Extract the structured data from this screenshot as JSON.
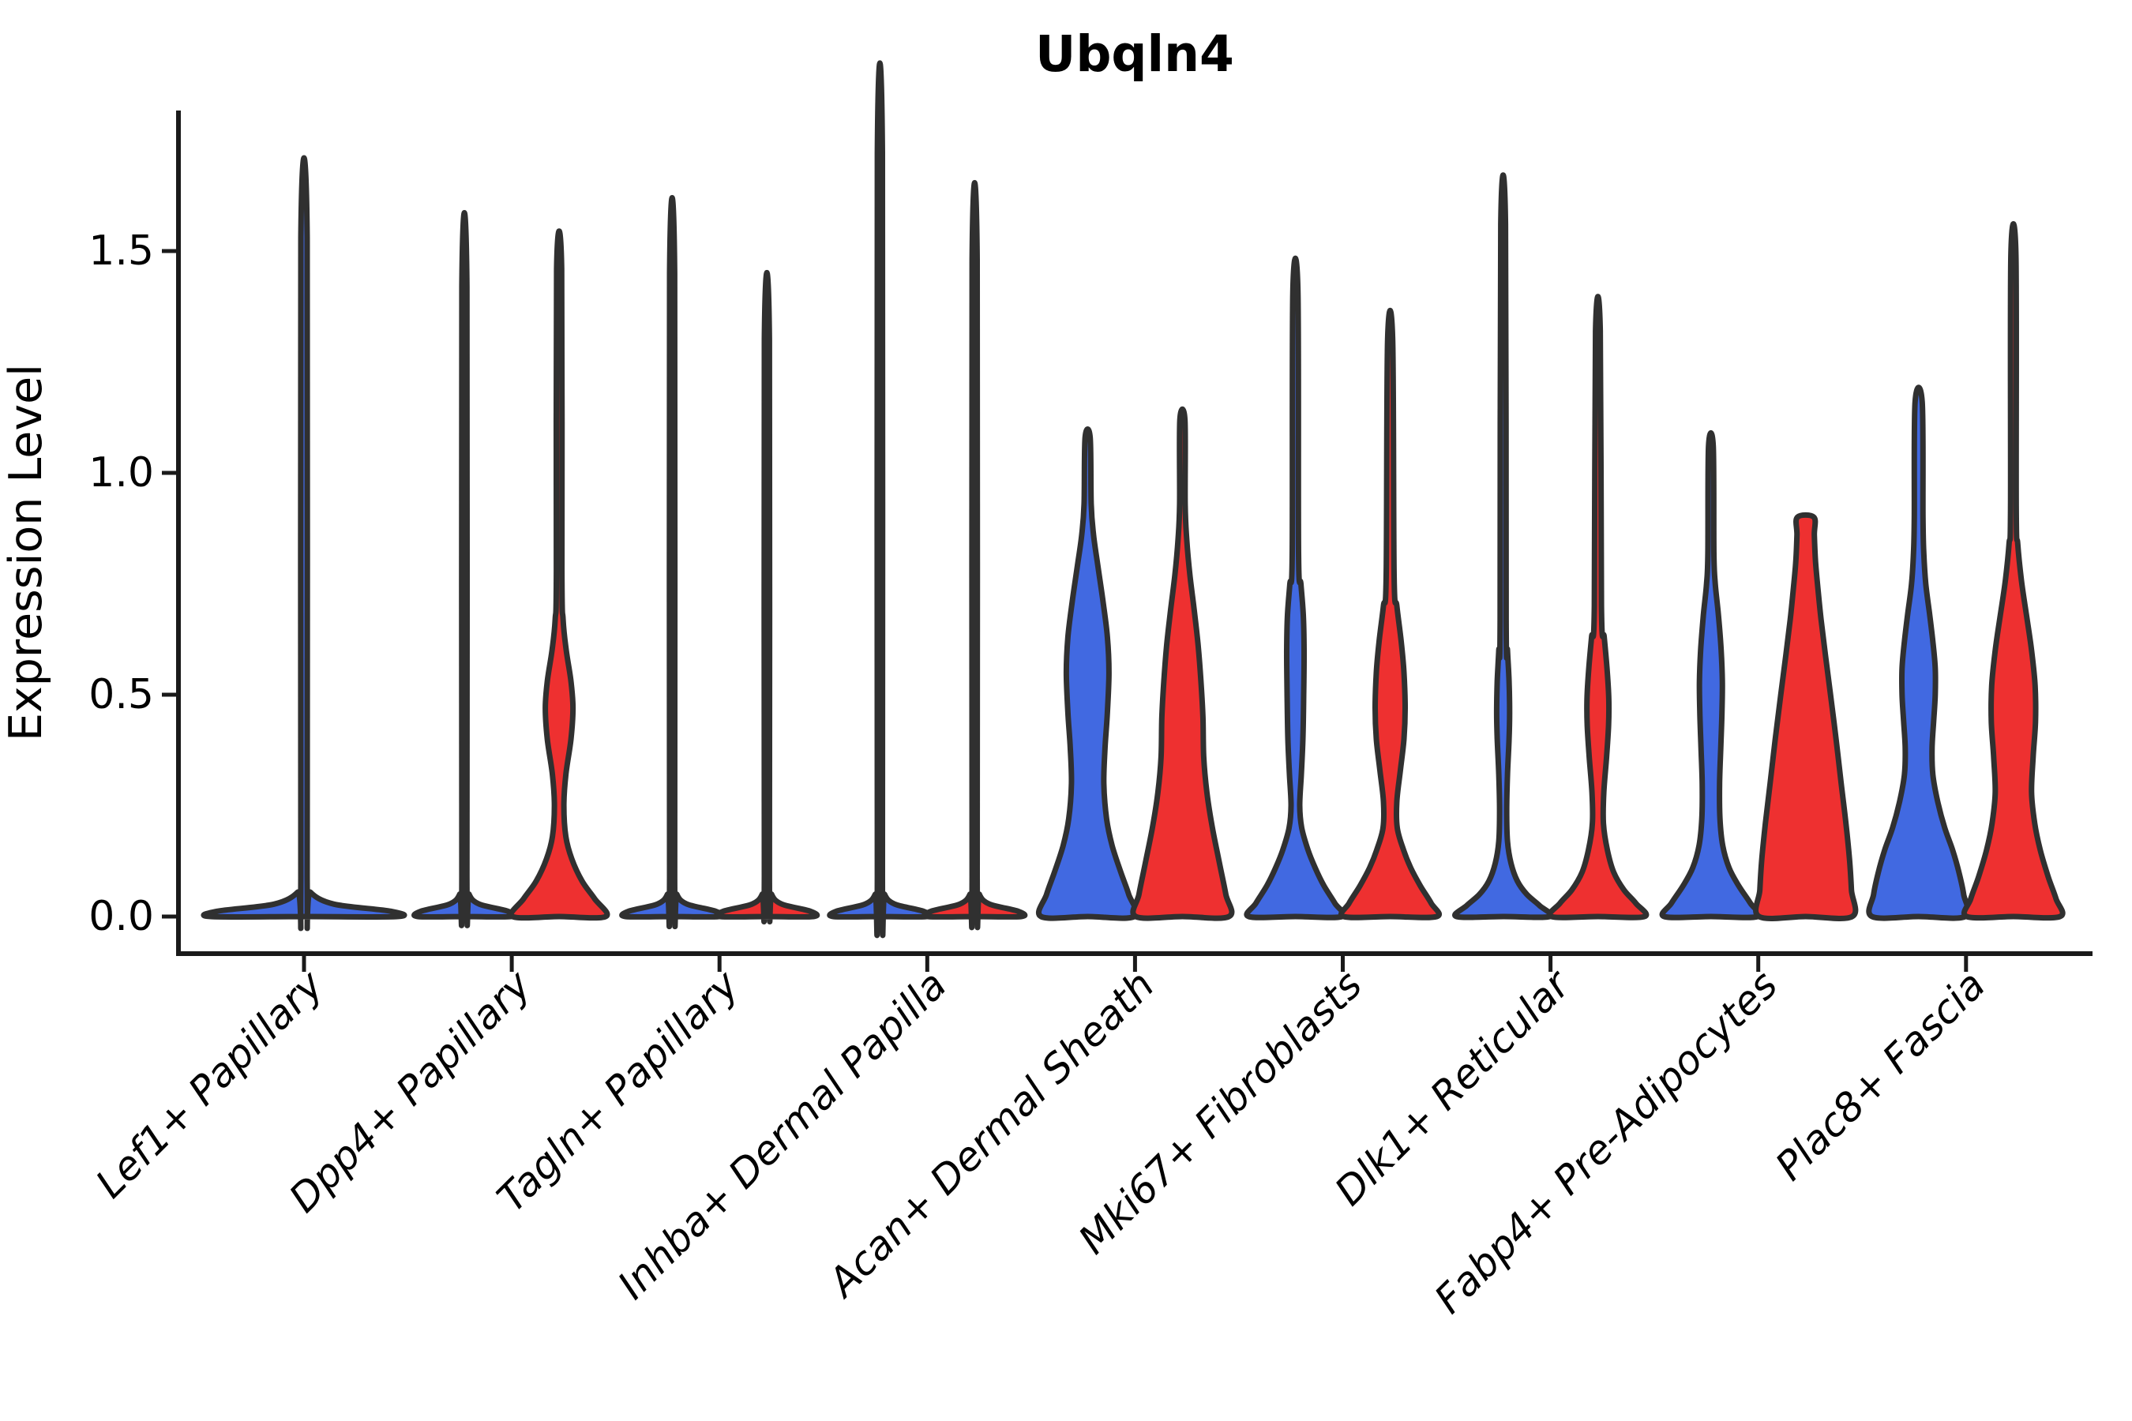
{
  "chart_data": {
    "type": "violin",
    "title": "Ubqln4",
    "ylabel": "Expression Level",
    "xlabel": "",
    "grid": false,
    "legend": "none",
    "yticks": [
      "0.0",
      "0.5",
      "1.0",
      "1.5"
    ],
    "ytick_values": [
      0.0,
      0.5,
      1.0,
      1.5
    ],
    "ylim": [
      0,
      1.82
    ],
    "colors": {
      "blue": "#4169E1",
      "red": "#EE3030",
      "outline": "#303030",
      "axis": "#1a1a1a",
      "text": "#000000"
    },
    "categories": [
      "Lef1+ Papillary",
      "Dpp4+ Papillary",
      "Tagln+ Papillary",
      "Inhba+ Dermal Papilla",
      "Acan+ Dermal Sheath",
      "Mki67+ Fibroblasts",
      "Dlk1+ Reticular",
      "Fabp4+ Pre-Adipocytes",
      "Plac8+ Fascia"
    ],
    "series_note": "two unlabeled conditions per cluster: blue (left violin) and red (right violin); no legend shown",
    "violins": [
      {
        "category": "Lef1+ Papillary",
        "items": [
          {
            "side": "center",
            "color": "blue",
            "top": 1.53,
            "shape": "flat-with-spike",
            "profile": [
              [
                0,
                118
              ],
              [
                0.012,
                110
              ],
              [
                0.028,
                38
              ],
              [
                0.055,
                8
              ],
              [
                0.09,
                4
              ],
              [
                1.53,
                4
              ]
            ]
          }
        ]
      },
      {
        "category": "Dpp4+ Papillary",
        "items": [
          {
            "side": "left",
            "color": "blue",
            "top": 1.42,
            "shape": "flat-with-spike",
            "profile": [
              [
                0,
                59
              ],
              [
                0.012,
                55
              ],
              [
                0.028,
                19
              ],
              [
                0.05,
                6
              ],
              [
                0.09,
                3.2
              ],
              [
                1.42,
                3.2
              ]
            ]
          },
          {
            "side": "right",
            "color": "red",
            "top": 1.46,
            "shape": "body-with-spike",
            "profile": [
              [
                0,
                59
              ],
              [
                0.04,
                45
              ],
              [
                0.08,
                29
              ],
              [
                0.13,
                16
              ],
              [
                0.18,
                8.5
              ],
              [
                0.25,
                6
              ],
              [
                0.32,
                8.5
              ],
              [
                0.4,
                15
              ],
              [
                0.47,
                17.5
              ],
              [
                0.53,
                15
              ],
              [
                0.6,
                9
              ],
              [
                0.67,
                5
              ],
              [
                0.78,
                3.5
              ],
              [
                1.46,
                3.2
              ]
            ]
          }
        ]
      },
      {
        "category": "Tagln+ Papillary",
        "items": [
          {
            "side": "left",
            "color": "blue",
            "top": 1.45,
            "shape": "flat-with-spike",
            "profile": [
              [
                0,
                59
              ],
              [
                0.012,
                55
              ],
              [
                0.028,
                19
              ],
              [
                0.05,
                6
              ],
              [
                0.09,
                3.2
              ],
              [
                1.45,
                3.2
              ]
            ]
          },
          {
            "side": "right",
            "color": "red",
            "top": 1.3,
            "shape": "flat-with-spike",
            "profile": [
              [
                0,
                59
              ],
              [
                0.012,
                55
              ],
              [
                0.028,
                19
              ],
              [
                0.05,
                6
              ],
              [
                0.09,
                3.2
              ],
              [
                1.3,
                3.2
              ]
            ]
          }
        ]
      },
      {
        "category": "Inhba+ Dermal Papilla",
        "items": [
          {
            "side": "left",
            "color": "blue",
            "top": 1.72,
            "shape": "flat-with-spike",
            "profile": [
              [
                0,
                59
              ],
              [
                0.012,
                55
              ],
              [
                0.028,
                19
              ],
              [
                0.05,
                6
              ],
              [
                0.09,
                3.2
              ],
              [
                1.72,
                3.2
              ]
            ]
          },
          {
            "side": "right",
            "color": "red",
            "top": 1.48,
            "shape": "flat-with-spike",
            "profile": [
              [
                0,
                59
              ],
              [
                0.012,
                55
              ],
              [
                0.028,
                19
              ],
              [
                0.05,
                6
              ],
              [
                0.09,
                3.2
              ],
              [
                1.48,
                3.2
              ]
            ]
          }
        ]
      },
      {
        "category": "Acan+ Dermal Sheath",
        "items": [
          {
            "side": "left",
            "color": "blue",
            "top": 1.08,
            "shape": "body-with-spike",
            "profile": [
              [
                0,
                59
              ],
              [
                0.05,
                52
              ],
              [
                0.1,
                42
              ],
              [
                0.16,
                31
              ],
              [
                0.22,
                24
              ],
              [
                0.3,
                20.5
              ],
              [
                0.38,
                22
              ],
              [
                0.46,
                25
              ],
              [
                0.55,
                27
              ],
              [
                0.63,
                25
              ],
              [
                0.71,
                19.5
              ],
              [
                0.79,
                13
              ],
              [
                0.86,
                7.5
              ],
              [
                0.93,
                4.5
              ],
              [
                1.08,
                3.2
              ]
            ]
          },
          {
            "side": "right",
            "color": "red",
            "top": 1.12,
            "shape": "body-with-spike",
            "profile": [
              [
                0,
                59
              ],
              [
                0.05,
                55
              ],
              [
                0.12,
                47
              ],
              [
                0.2,
                38
              ],
              [
                0.28,
                31
              ],
              [
                0.36,
                27
              ],
              [
                0.45,
                26
              ],
              [
                0.53,
                23.5
              ],
              [
                0.61,
                20
              ],
              [
                0.69,
                15
              ],
              [
                0.77,
                9.5
              ],
              [
                0.85,
                5.5
              ],
              [
                0.93,
                3.5
              ],
              [
                1.12,
                3.2
              ]
            ]
          }
        ]
      },
      {
        "category": "Mki67+ Fibroblasts",
        "items": [
          {
            "side": "left",
            "color": "blue",
            "top": 1.41,
            "shape": "body-with-spike",
            "profile": [
              [
                0,
                59
              ],
              [
                0.03,
                50
              ],
              [
                0.07,
                36
              ],
              [
                0.11,
                25
              ],
              [
                0.15,
                16
              ],
              [
                0.2,
                8
              ],
              [
                0.25,
                5.5
              ],
              [
                0.32,
                7.5
              ],
              [
                0.4,
                9.5
              ],
              [
                0.5,
                10.5
              ],
              [
                0.6,
                11
              ],
              [
                0.68,
                10
              ],
              [
                0.75,
                7
              ],
              [
                0.82,
                4
              ],
              [
                1.41,
                3.2
              ]
            ]
          },
          {
            "side": "right",
            "color": "red",
            "top": 1.3,
            "shape": "body-with-spike",
            "profile": [
              [
                0,
                59
              ],
              [
                0.03,
                52
              ],
              [
                0.07,
                38
              ],
              [
                0.11,
                26
              ],
              [
                0.15,
                17
              ],
              [
                0.2,
                9
              ],
              [
                0.26,
                8.5
              ],
              [
                0.33,
                13
              ],
              [
                0.4,
                17.5
              ],
              [
                0.47,
                19
              ],
              [
                0.55,
                17.5
              ],
              [
                0.62,
                14
              ],
              [
                0.7,
                8.5
              ],
              [
                0.77,
                5
              ],
              [
                1.3,
                3.2
              ]
            ]
          }
        ]
      },
      {
        "category": "Dlk1+ Reticular",
        "items": [
          {
            "side": "left",
            "color": "blue",
            "top": 1.56,
            "shape": "body-with-spike",
            "profile": [
              [
                0,
                59
              ],
              [
                0.025,
                46
              ],
              [
                0.05,
                30
              ],
              [
                0.08,
                18
              ],
              [
                0.12,
                10
              ],
              [
                0.17,
                5.5
              ],
              [
                0.24,
                4.5
              ],
              [
                0.32,
                5.5
              ],
              [
                0.4,
                7.5
              ],
              [
                0.46,
                8.2
              ],
              [
                0.53,
                7.5
              ],
              [
                0.6,
                5.5
              ],
              [
                0.67,
                3.8
              ],
              [
                1.56,
                3
              ]
            ]
          },
          {
            "side": "right",
            "color": "red",
            "top": 1.32,
            "shape": "body-with-spike",
            "profile": [
              [
                0,
                59
              ],
              [
                0.03,
                48
              ],
              [
                0.06,
                33
              ],
              [
                0.1,
                20
              ],
              [
                0.15,
                12
              ],
              [
                0.21,
                7
              ],
              [
                0.28,
                7.5
              ],
              [
                0.36,
                11
              ],
              [
                0.43,
                13.5
              ],
              [
                0.49,
                13.8
              ],
              [
                0.56,
                11.5
              ],
              [
                0.63,
                8
              ],
              [
                0.7,
                4.5
              ],
              [
                1.32,
                3
              ]
            ]
          }
        ]
      },
      {
        "category": "Fabp4+ Pre-Adipocytes",
        "items": [
          {
            "side": "left",
            "color": "blue",
            "top": 1.06,
            "shape": "body-with-spike",
            "profile": [
              [
                0,
                59
              ],
              [
                0.03,
                50
              ],
              [
                0.07,
                35
              ],
              [
                0.11,
                23
              ],
              [
                0.16,
                15
              ],
              [
                0.22,
                11.5
              ],
              [
                0.3,
                11
              ],
              [
                0.38,
                12.5
              ],
              [
                0.46,
                14
              ],
              [
                0.53,
                14.5
              ],
              [
                0.6,
                13
              ],
              [
                0.68,
                9.5
              ],
              [
                0.75,
                5.5
              ],
              [
                0.82,
                3.8
              ],
              [
                1.06,
                3
              ]
            ]
          },
          {
            "side": "right",
            "color": "red",
            "top": 0.9,
            "shape": "wide-body-flat-top",
            "flat_top": true,
            "profile": [
              [
                0,
                59
              ],
              [
                0.06,
                58
              ],
              [
                0.13,
                55.5
              ],
              [
                0.21,
                51
              ],
              [
                0.3,
                45
              ],
              [
                0.4,
                38.5
              ],
              [
                0.5,
                31.5
              ],
              [
                0.59,
                25
              ],
              [
                0.67,
                19.5
              ],
              [
                0.74,
                15.5
              ],
              [
                0.8,
                12.5
              ],
              [
                0.86,
                11
              ],
              [
                0.9,
                10.5
              ]
            ]
          }
        ]
      },
      {
        "category": "Plac8+ Fascia",
        "items": [
          {
            "side": "left",
            "color": "blue",
            "top": 1.16,
            "shape": "body-with-spike",
            "profile": [
              [
                0,
                59
              ],
              [
                0.05,
                57
              ],
              [
                0.1,
                51
              ],
              [
                0.15,
                43
              ],
              [
                0.2,
                33
              ],
              [
                0.26,
                24
              ],
              [
                0.32,
                18
              ],
              [
                0.38,
                17
              ],
              [
                0.44,
                19
              ],
              [
                0.5,
                21
              ],
              [
                0.56,
                21
              ],
              [
                0.62,
                18
              ],
              [
                0.68,
                14
              ],
              [
                0.75,
                9
              ],
              [
                0.82,
                6.5
              ],
              [
                0.9,
                5.5
              ],
              [
                1.16,
                4.5
              ]
            ]
          },
          {
            "side": "right",
            "color": "red",
            "top": 1.49,
            "shape": "body-with-spike",
            "profile": [
              [
                0,
                59
              ],
              [
                0.04,
                54
              ],
              [
                0.09,
                44
              ],
              [
                0.15,
                34
              ],
              [
                0.21,
                27
              ],
              [
                0.28,
                23
              ],
              [
                0.36,
                25
              ],
              [
                0.44,
                28
              ],
              [
                0.52,
                27.5
              ],
              [
                0.6,
                23
              ],
              [
                0.68,
                16.5
              ],
              [
                0.76,
                10
              ],
              [
                0.84,
                5.5
              ],
              [
                0.92,
                3.6
              ],
              [
                1.49,
                3.2
              ]
            ]
          }
        ]
      }
    ]
  }
}
